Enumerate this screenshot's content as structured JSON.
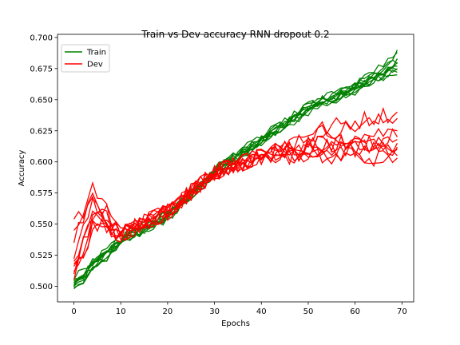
{
  "chart_data": {
    "type": "line",
    "title": "Train vs Dev accuracy RNN dropout 0.2",
    "xlabel": "Epochs",
    "ylabel": "Accuracy",
    "xlim": [
      -3.5,
      72.5
    ],
    "ylim": [
      0.4875,
      0.7025
    ],
    "xticks": [
      0,
      10,
      20,
      30,
      40,
      50,
      60,
      70
    ],
    "yticks": [
      0.5,
      0.525,
      0.55,
      0.575,
      0.6,
      0.625,
      0.65,
      0.675,
      0.7
    ],
    "ytick_labels": [
      "0.500",
      "0.525",
      "0.550",
      "0.575",
      "0.600",
      "0.625",
      "0.650",
      "0.675",
      "0.700"
    ],
    "grid": false,
    "legend_position": "top-left",
    "legend": [
      {
        "name": "Train",
        "color": "#008000"
      },
      {
        "name": "Dev",
        "color": "#ff0000"
      }
    ],
    "epochs": 70,
    "series_groups": [
      {
        "name": "Train",
        "color": "#008000",
        "runs": 10,
        "start": [
          0.499,
          0.5,
          0.502,
          0.504,
          0.506,
          0.498,
          0.503,
          0.501,
          0.505,
          0.5
        ],
        "at_epoch_10": 0.537,
        "at_epoch_20": 0.557,
        "at_epoch_30": 0.592,
        "at_epoch_40": 0.618,
        "at_epoch_50": 0.643,
        "at_epoch_60": 0.66,
        "end": [
          0.69,
          0.683,
          0.68,
          0.677,
          0.675,
          0.672,
          0.688,
          0.67,
          0.679,
          0.674
        ],
        "noise": 0.0035
      },
      {
        "name": "Dev",
        "color": "#ff0000",
        "runs": 10,
        "start": [
          0.535,
          0.554,
          0.52,
          0.512,
          0.516,
          0.505,
          0.545,
          0.518,
          0.51,
          0.522
        ],
        "early_peak": [
          0.575,
          0.568,
          0.56,
          0.552,
          0.558,
          0.548,
          0.58,
          0.556,
          0.545,
          0.565
        ],
        "at_epoch_20": 0.56,
        "at_epoch_30": 0.592,
        "at_epoch_40": 0.605,
        "end": [
          0.64,
          0.635,
          0.625,
          0.62,
          0.615,
          0.61,
          0.605,
          0.603,
          0.612,
          0.618
        ],
        "noise": 0.007
      }
    ]
  }
}
